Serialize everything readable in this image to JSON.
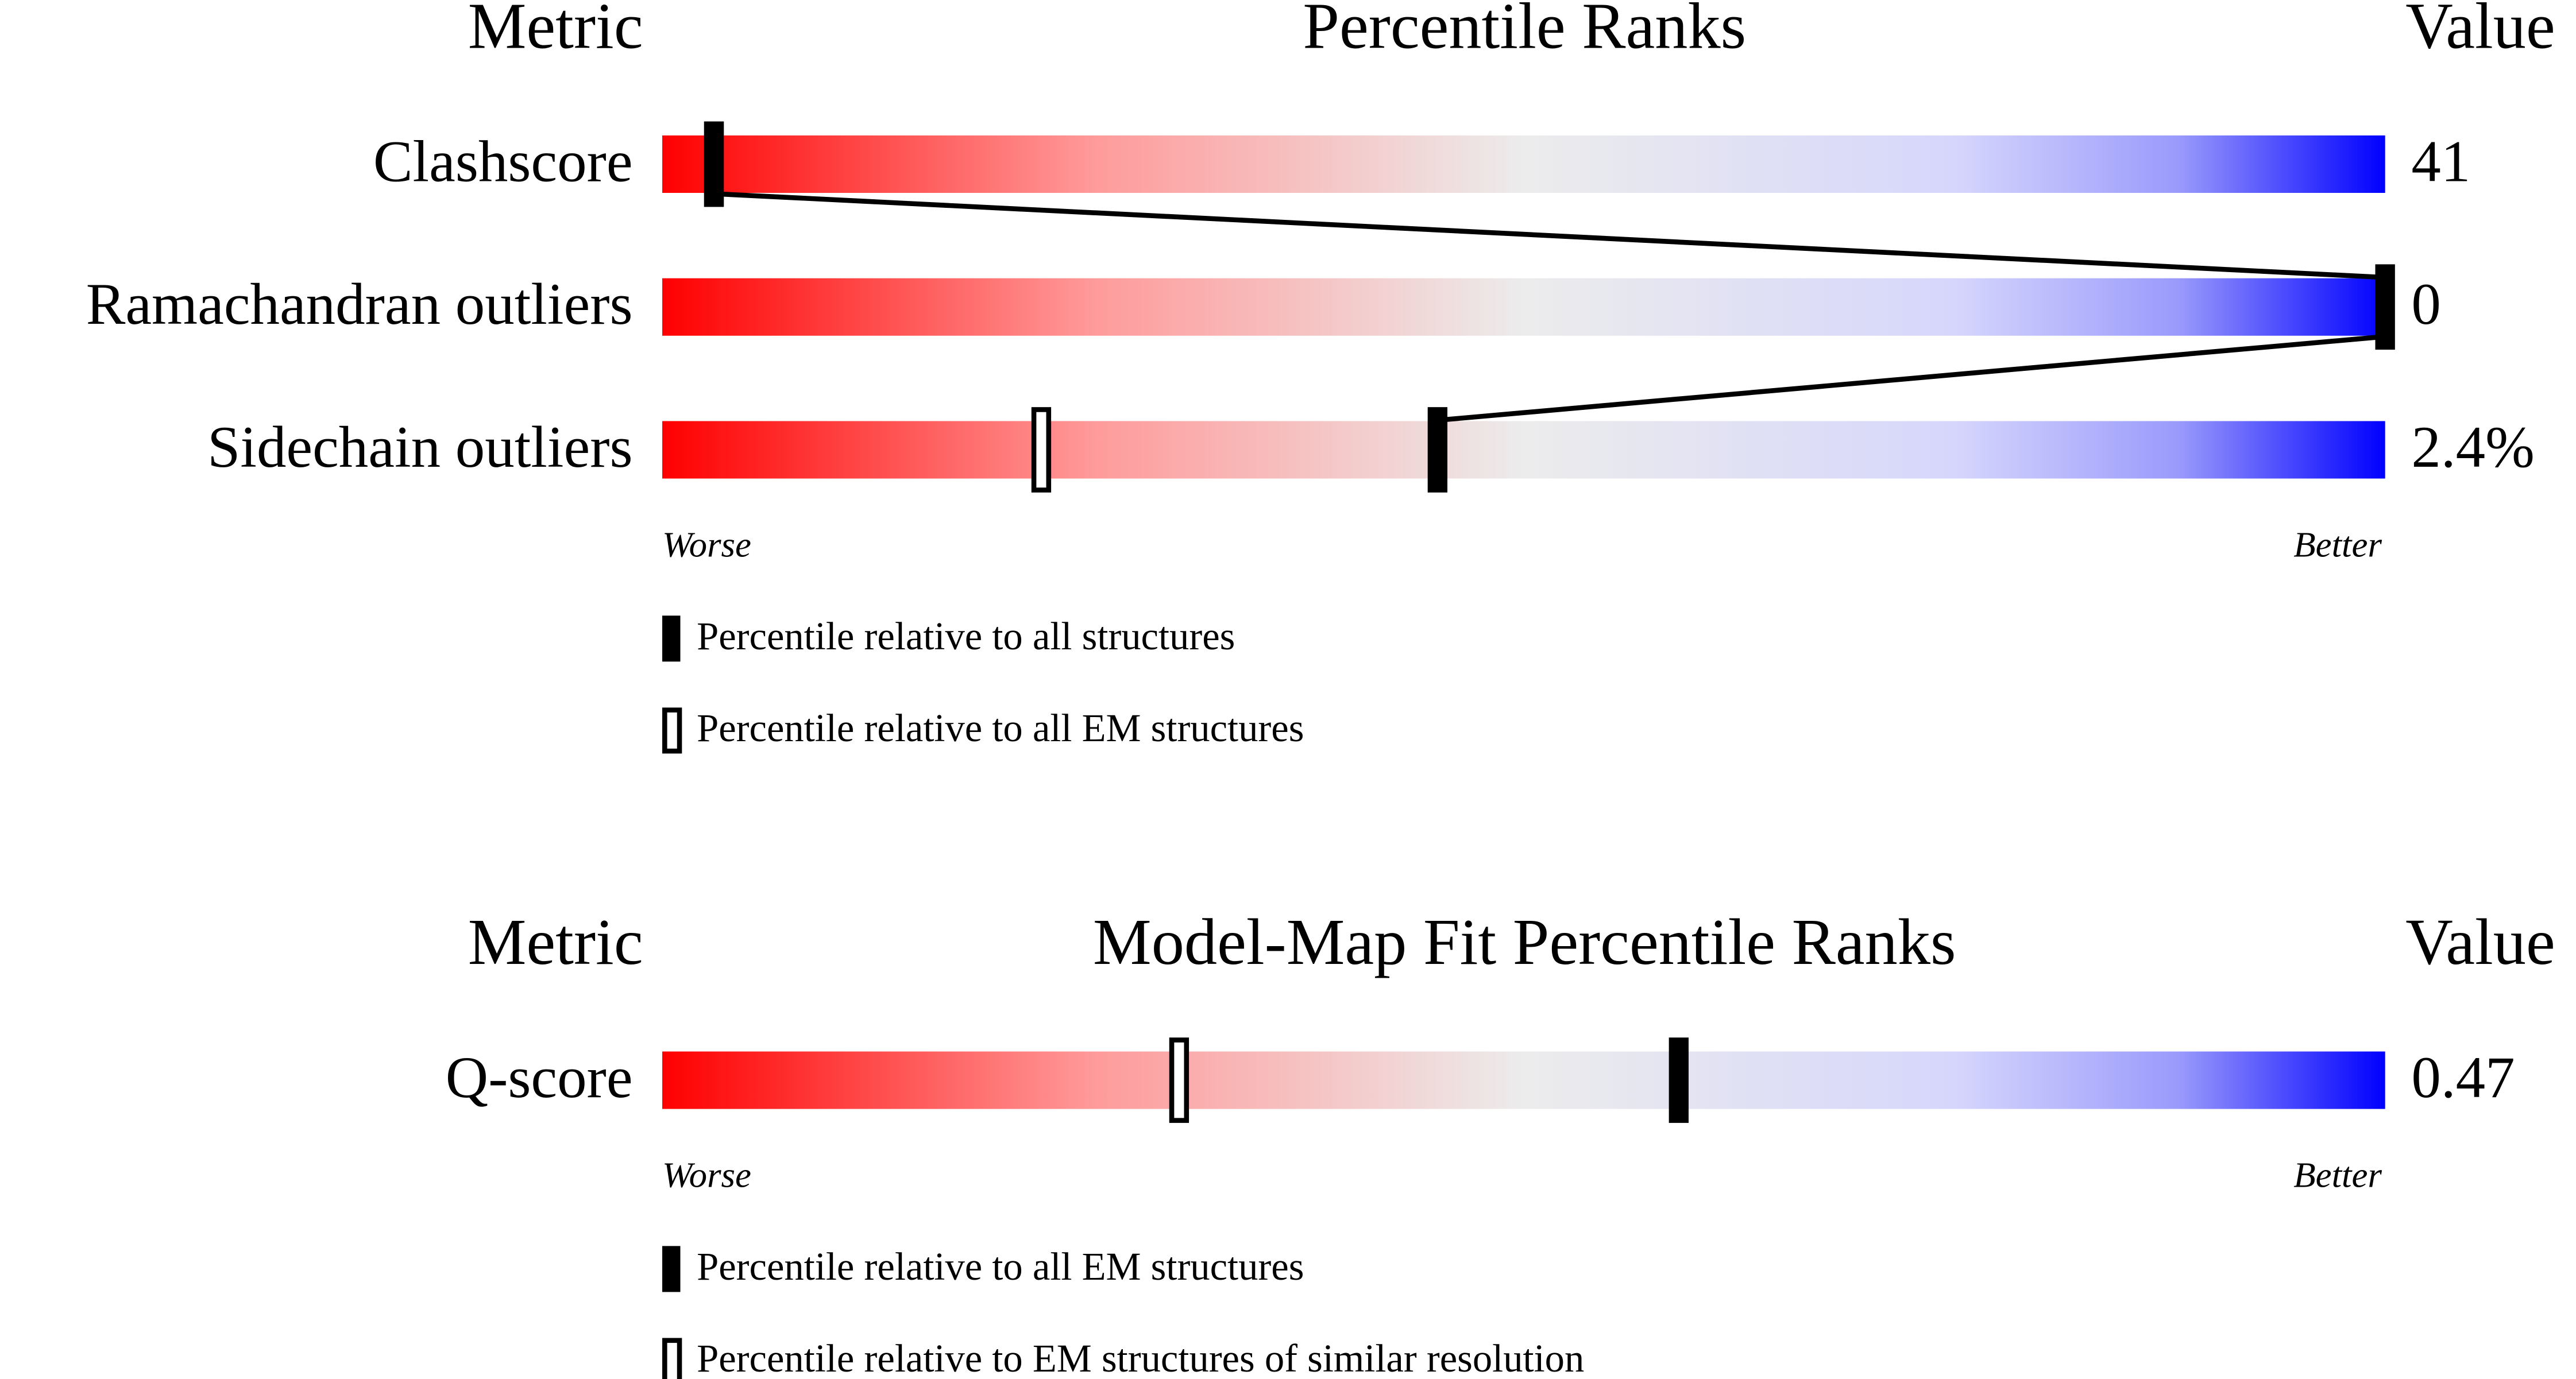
{
  "panels": [
    {
      "header": {
        "metric": "Metric",
        "title": "Percentile Ranks",
        "value": "Value"
      },
      "rows": [
        {
          "metric": "Clashscore",
          "value": "41",
          "percentile_all": 3,
          "percentile_em": 3
        },
        {
          "metric": "Ramachandran outliers",
          "value": "0",
          "percentile_all": 100,
          "percentile_em": null
        },
        {
          "metric": "Sidechain outliers",
          "value": "2.4%",
          "percentile_all": 45,
          "percentile_em": 22
        }
      ],
      "worse": "Worse",
      "better": "Better",
      "legend": {
        "filled": "Percentile relative to all structures",
        "open": "Percentile relative to all EM structures"
      }
    },
    {
      "header": {
        "metric": "Metric",
        "title": "Model-Map Fit Percentile Ranks",
        "value": "Value"
      },
      "rows": [
        {
          "metric": "Q-score",
          "value": "0.47",
          "percentile_all": 59,
          "percentile_em": 30
        }
      ],
      "worse": "Worse",
      "better": "Better",
      "legend": {
        "filled": "Percentile relative to all EM structures",
        "open": "Percentile relative to EM structures of similar resolution"
      }
    }
  ]
}
